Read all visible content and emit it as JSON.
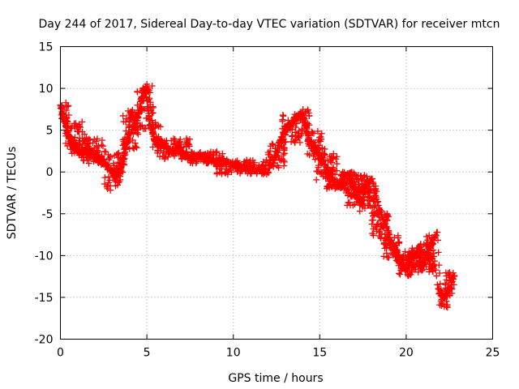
{
  "chart_data": {
    "type": "scatter",
    "title": "Day 244 of 2017, Sidereal Day-to-day VTEC variation (SDTVAR) for receiver mtcn",
    "xlabel": "GPS time / hours",
    "ylabel": "SDTVAR / TECUs",
    "xlim": [
      0,
      25
    ],
    "ylim": [
      -20,
      15
    ],
    "xticks": [
      0,
      5,
      10,
      15,
      20,
      25
    ],
    "yticks": [
      -20,
      -15,
      -10,
      -5,
      0,
      5,
      10,
      15
    ],
    "grid": true,
    "marker": "plus",
    "colors": {
      "series": "#ff0000",
      "grid": "#a0a0a0",
      "axis": "#000000"
    },
    "series": [
      {
        "name": "SDTVAR",
        "x": [
          0.0,
          0.1,
          0.2,
          0.3,
          0.4,
          0.5,
          0.6,
          0.7,
          0.8,
          1.0,
          1.2,
          1.4,
          1.6,
          1.8,
          2.0,
          2.2,
          2.4,
          2.5,
          2.6,
          2.8,
          3.0,
          3.1,
          3.2,
          3.4,
          3.5,
          3.6,
          3.7,
          3.8,
          3.9,
          4.0,
          4.1,
          4.2,
          4.3,
          4.4,
          4.5,
          4.6,
          4.7,
          4.8,
          4.9,
          5.0,
          5.1,
          5.2,
          5.3,
          5.4,
          5.5,
          5.6,
          5.8,
          6.0,
          6.2,
          6.4,
          6.6,
          6.8,
          7.0,
          7.2,
          7.5,
          7.8,
          8.0,
          8.3,
          8.6,
          9.0,
          9.3,
          9.6,
          10.0,
          10.3,
          10.6,
          11.0,
          11.3,
          11.6,
          12.0,
          12.2,
          12.4,
          12.6,
          12.8,
          13.0,
          13.2,
          13.4,
          13.6,
          13.8,
          14.0,
          14.1,
          14.2,
          14.3,
          14.4,
          14.6,
          14.8,
          15.0,
          15.2,
          15.4,
          15.6,
          15.8,
          16.0,
          16.2,
          16.4,
          16.6,
          16.8,
          17.0,
          17.2,
          17.4,
          17.6,
          17.8,
          18.0,
          18.2,
          18.4,
          18.6,
          18.8,
          19.0,
          19.2,
          19.4,
          19.6,
          19.8,
          20.0,
          20.2,
          20.4,
          20.6,
          20.8,
          21.0,
          21.2,
          21.4,
          21.6,
          21.8,
          22.0,
          22.2,
          22.4,
          22.6,
          22.8,
          0.1,
          0.3,
          0.5,
          0.7,
          0.9,
          1.1,
          1.5,
          1.9,
          2.3,
          2.7,
          3.3,
          3.6,
          3.9,
          4.2,
          4.5,
          4.8,
          5.0,
          5.3,
          6.0,
          6.5,
          7.0,
          8.0,
          9.0,
          10.0,
          11.0,
          12.5,
          13.0,
          13.5,
          14.0,
          14.5,
          15.0,
          15.5,
          16.2,
          16.5,
          16.9,
          17.3,
          17.7,
          18.1,
          18.5,
          18.9,
          19.3,
          19.7,
          20.1,
          20.5,
          20.9,
          21.2,
          21.5,
          21.8,
          22.1,
          22.5
        ],
        "y": [
          8.0,
          7.2,
          6.5,
          5.8,
          5.0,
          4.2,
          3.6,
          3.2,
          2.8,
          2.5,
          2.3,
          2.6,
          2.8,
          2.4,
          2.0,
          1.6,
          1.0,
          1.5,
          0.8,
          0.4,
          0.2,
          -0.5,
          -1.0,
          0.0,
          0.6,
          1.5,
          2.2,
          3.0,
          4.2,
          6.0,
          7.2,
          6.5,
          5.0,
          5.5,
          6.5,
          7.8,
          9.0,
          10.0,
          9.5,
          8.5,
          7.0,
          5.5,
          5.0,
          4.0,
          3.6,
          3.2,
          3.8,
          3.0,
          2.8,
          2.5,
          2.6,
          3.0,
          2.4,
          2.0,
          1.8,
          1.8,
          2.0,
          1.7,
          1.5,
          1.3,
          1.2,
          1.0,
          0.8,
          0.6,
          0.5,
          0.3,
          0.2,
          0.1,
          0.0,
          0.8,
          1.8,
          3.0,
          4.2,
          5.0,
          5.6,
          6.0,
          6.4,
          6.8,
          7.0,
          6.2,
          5.5,
          4.6,
          3.8,
          3.2,
          2.6,
          2.0,
          1.3,
          0.6,
          -0.3,
          -1.2,
          -1.8,
          -1.3,
          -0.5,
          -0.2,
          -1.0,
          -2.2,
          -3.2,
          -3.6,
          -2.4,
          -1.4,
          -0.8,
          -2.5,
          -4.0,
          -5.4,
          -6.2,
          -7.4,
          -8.5,
          -9.4,
          -10.2,
          -11.0,
          -11.8,
          -11.0,
          -10.3,
          -9.6,
          -10.6,
          -11.2,
          -10.0,
          -9.0,
          -8.2,
          -7.2,
          -14.5,
          -15.0,
          -14.3,
          -13.5,
          -12.4,
          7.0,
          5.5,
          4.0,
          3.0,
          3.4,
          2.0,
          2.1,
          1.6,
          1.4,
          0.9,
          -0.2,
          1.0,
          3.5,
          5.5,
          7.0,
          8.8,
          10.5,
          7.0,
          3.3,
          2.2,
          2.9,
          1.6,
          1.5,
          0.5,
          0.0,
          2.0,
          4.5,
          6.0,
          6.8,
          2.8,
          1.5,
          -0.6,
          -1.5,
          -2.0,
          -2.8,
          -2.2,
          -1.8,
          -3.5,
          -5.8,
          -8.0,
          -9.8,
          -11.5,
          -10.8,
          -10.0,
          -11.8,
          -9.5,
          -8.0,
          -13.5,
          -15.8,
          -13.0
        ],
        "clusters": [
          [
            0.0,
            0.5,
            5.5,
            8.3
          ],
          [
            0.3,
            1.5,
            2.2,
            6.0
          ],
          [
            1.2,
            2.5,
            1.0,
            4.0
          ],
          [
            2.5,
            3.7,
            -2.2,
            2.5
          ],
          [
            3.6,
            4.5,
            2.5,
            7.5
          ],
          [
            4.3,
            5.4,
            5.0,
            10.5
          ],
          [
            5.3,
            5.9,
            2.5,
            6.0
          ],
          [
            5.6,
            7.5,
            1.5,
            4.0
          ],
          [
            7.5,
            9.5,
            1.0,
            2.5
          ],
          [
            9.0,
            12.0,
            -0.3,
            1.5
          ],
          [
            12.0,
            13.0,
            0.5,
            3.5
          ],
          [
            12.8,
            14.0,
            3.5,
            7.0
          ],
          [
            13.9,
            14.4,
            4.5,
            7.5
          ],
          [
            14.2,
            15.3,
            1.5,
            5.0
          ],
          [
            14.8,
            16.0,
            -1.0,
            2.5
          ],
          [
            15.3,
            16.3,
            -2.0,
            0.0
          ],
          [
            16.2,
            17.0,
            -1.5,
            0.0
          ],
          [
            16.5,
            17.3,
            -4.0,
            -1.0
          ],
          [
            17.0,
            17.8,
            -2.0,
            -0.3
          ],
          [
            17.3,
            18.3,
            -5.0,
            -1.5
          ],
          [
            18.0,
            19.0,
            -8.0,
            -4.5
          ],
          [
            18.7,
            19.7,
            -10.5,
            -7.5
          ],
          [
            19.5,
            20.3,
            -12.5,
            -9.5
          ],
          [
            20.0,
            20.6,
            -11.5,
            -9.5
          ],
          [
            20.3,
            21.0,
            -12.0,
            -9.0
          ],
          [
            20.7,
            21.4,
            -11.5,
            -8.5
          ],
          [
            21.1,
            21.6,
            -10.5,
            -7.0
          ],
          [
            21.3,
            21.6,
            -12.0,
            -11.0
          ],
          [
            21.9,
            22.4,
            -16.2,
            -14.0
          ],
          [
            22.2,
            22.8,
            -15.0,
            -12.0
          ]
        ]
      }
    ]
  }
}
